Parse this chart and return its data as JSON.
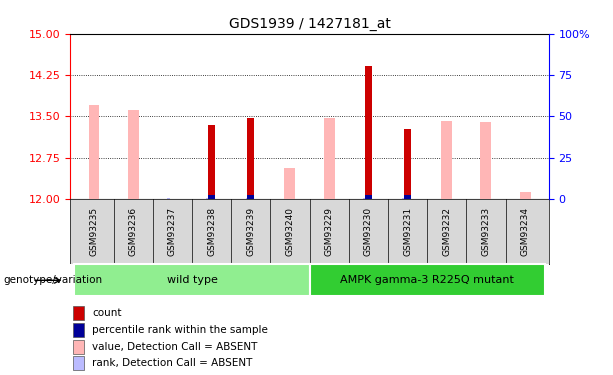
{
  "title": "GDS1939 / 1427181_at",
  "samples": [
    "GSM93235",
    "GSM93236",
    "GSM93237",
    "GSM93238",
    "GSM93239",
    "GSM93240",
    "GSM93229",
    "GSM93230",
    "GSM93231",
    "GSM93232",
    "GSM93233",
    "GSM93234"
  ],
  "count_values": [
    12.0,
    12.0,
    12.0,
    13.35,
    13.47,
    12.0,
    12.0,
    14.42,
    13.27,
    12.0,
    12.0,
    12.0
  ],
  "pink_values": [
    13.7,
    13.62,
    12.0,
    12.0,
    12.0,
    12.56,
    13.47,
    12.0,
    12.0,
    13.42,
    13.39,
    12.12
  ],
  "rank_pct_values": [
    0,
    0,
    0,
    2,
    2,
    0,
    0,
    2,
    2,
    0,
    0,
    0
  ],
  "lightblue_pct": [
    0.5,
    0.5,
    0.5,
    0.5,
    0.5,
    0.5,
    0.5,
    0.5,
    0.5,
    0.5,
    0.5,
    0.5
  ],
  "has_count": [
    false,
    false,
    false,
    true,
    true,
    false,
    false,
    true,
    true,
    false,
    false,
    false
  ],
  "has_rank": [
    false,
    false,
    false,
    true,
    true,
    false,
    false,
    true,
    true,
    false,
    false,
    false
  ],
  "has_pink": [
    true,
    true,
    false,
    false,
    false,
    true,
    true,
    false,
    false,
    true,
    true,
    true
  ],
  "groups": [
    {
      "label": "wild type",
      "start": 0,
      "end": 6,
      "color": "#90ee90"
    },
    {
      "label": "AMPK gamma-3 R225Q mutant",
      "start": 6,
      "end": 12,
      "color": "#32cd32"
    }
  ],
  "ylim": [
    12,
    15
  ],
  "yticks": [
    12,
    12.75,
    13.5,
    14.25,
    15
  ],
  "right_yticks": [
    0,
    25,
    50,
    75,
    100
  ],
  "count_color": "#cc0000",
  "rank_color": "#000099",
  "pink_color": "#ffb6b6",
  "lightblue_color": "#bbbbff",
  "background_color": "#ffffff",
  "genotype_label": "genotype/variation",
  "legend_items": [
    {
      "color": "#cc0000",
      "label": "count"
    },
    {
      "color": "#000099",
      "label": "percentile rank within the sample"
    },
    {
      "color": "#ffb6b6",
      "label": "value, Detection Call = ABSENT"
    },
    {
      "color": "#bbbbff",
      "label": "rank, Detection Call = ABSENT"
    }
  ]
}
